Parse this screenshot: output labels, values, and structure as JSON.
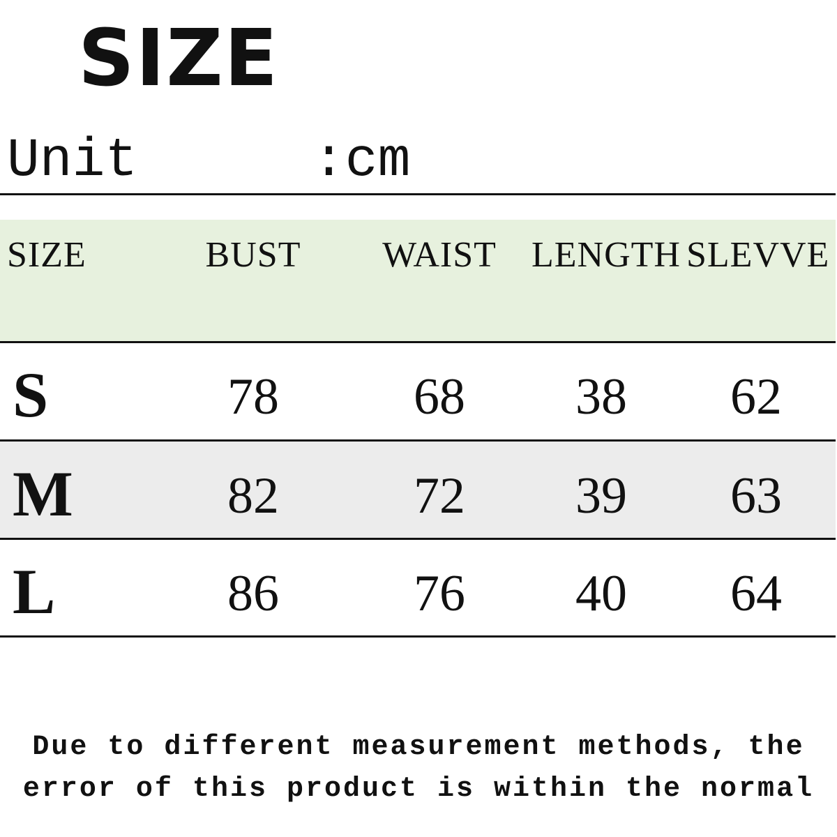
{
  "header": {
    "title": "SIZE",
    "unit_label": "Unit",
    "unit_value": ":cm"
  },
  "table": {
    "columns": [
      "SIZE",
      "BUST",
      "WAIST",
      "LENGTH",
      "SLEVVE"
    ],
    "rows": [
      [
        "S",
        78,
        68,
        38,
        62
      ],
      [
        "M",
        82,
        72,
        39,
        63
      ],
      [
        "L",
        86,
        76,
        40,
        64
      ]
    ]
  },
  "note": {
    "lines": [
      "Due to different measurement methods, the",
      "error of this product is within the normal"
    ]
  }
}
